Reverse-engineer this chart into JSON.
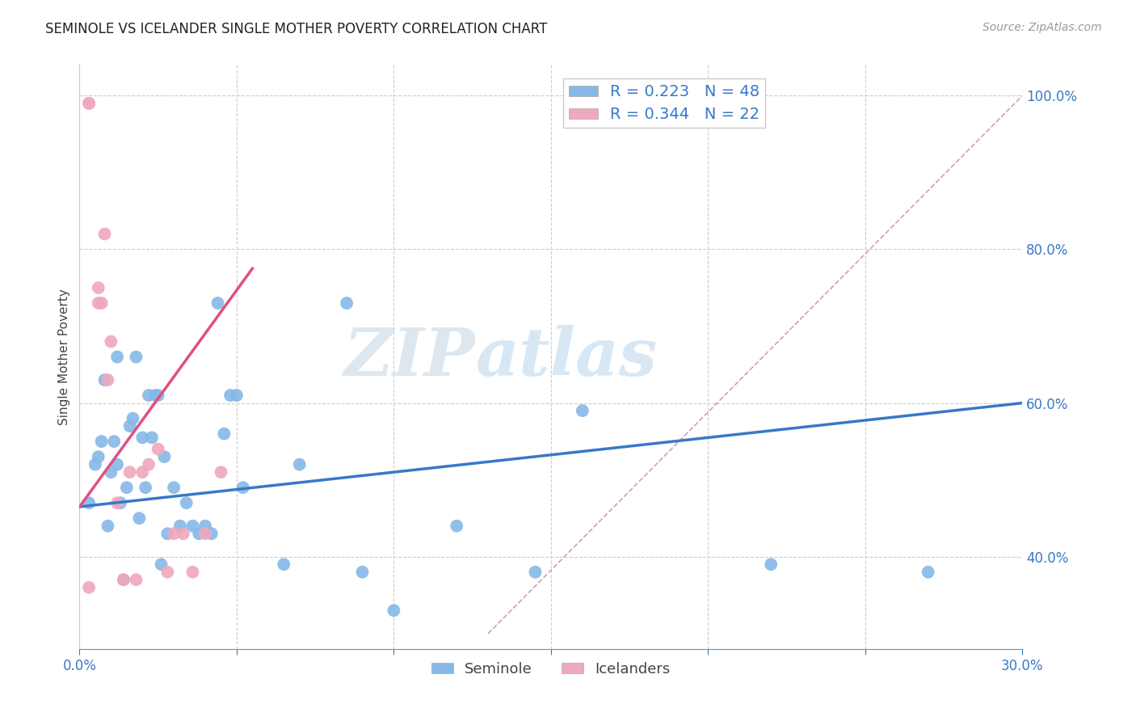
{
  "title": "SEMINOLE VS ICELANDER SINGLE MOTHER POVERTY CORRELATION CHART",
  "source": "Source: ZipAtlas.com",
  "ylabel": "Single Mother Poverty",
  "watermark": "ZIPatlas",
  "xlim": [
    0.0,
    0.3
  ],
  "ylim": [
    0.28,
    1.04
  ],
  "yticks": [
    0.4,
    0.6,
    0.8,
    1.0
  ],
  "xticks": [
    0.0,
    0.05,
    0.1,
    0.15,
    0.2,
    0.25,
    0.3
  ],
  "seminole_color": "#85b8e8",
  "icelander_color": "#f0a8bc",
  "seminole_R": 0.223,
  "seminole_N": 48,
  "icelander_R": 0.344,
  "icelander_N": 22,
  "seminole_line_color": "#3878c8",
  "icelander_line_color": "#e05080",
  "ref_line_color": "#d0a0b0",
  "seminole_line_x0": 0.0,
  "seminole_line_y0": 0.465,
  "seminole_line_x1": 0.3,
  "seminole_line_y1": 0.6,
  "icelander_line_x0": 0.0,
  "icelander_line_y0": 0.465,
  "icelander_line_x1": 0.055,
  "icelander_line_y1": 0.775,
  "ref_line_x0": 0.13,
  "ref_line_y0": 0.3,
  "ref_line_x1": 0.3,
  "ref_line_y1": 1.0,
  "seminole_x": [
    0.003,
    0.005,
    0.006,
    0.007,
    0.008,
    0.009,
    0.01,
    0.011,
    0.012,
    0.012,
    0.013,
    0.014,
    0.015,
    0.016,
    0.017,
    0.018,
    0.019,
    0.02,
    0.021,
    0.022,
    0.023,
    0.024,
    0.025,
    0.026,
    0.027,
    0.028,
    0.03,
    0.032,
    0.034,
    0.036,
    0.038,
    0.04,
    0.042,
    0.044,
    0.046,
    0.048,
    0.05,
    0.052,
    0.065,
    0.07,
    0.085,
    0.09,
    0.1,
    0.12,
    0.145,
    0.16,
    0.22,
    0.27
  ],
  "seminole_y": [
    0.47,
    0.52,
    0.53,
    0.55,
    0.63,
    0.44,
    0.51,
    0.55,
    0.66,
    0.52,
    0.47,
    0.37,
    0.49,
    0.57,
    0.58,
    0.66,
    0.45,
    0.555,
    0.49,
    0.61,
    0.555,
    0.61,
    0.61,
    0.39,
    0.53,
    0.43,
    0.49,
    0.44,
    0.47,
    0.44,
    0.43,
    0.44,
    0.43,
    0.73,
    0.56,
    0.61,
    0.61,
    0.49,
    0.39,
    0.52,
    0.73,
    0.38,
    0.33,
    0.44,
    0.38,
    0.59,
    0.39,
    0.38
  ],
  "icelander_x": [
    0.003,
    0.003,
    0.006,
    0.007,
    0.008,
    0.009,
    0.01,
    0.012,
    0.014,
    0.016,
    0.018,
    0.02,
    0.022,
    0.025,
    0.028,
    0.03,
    0.033,
    0.036,
    0.04,
    0.045,
    0.006,
    0.003
  ],
  "icelander_y": [
    0.99,
    0.99,
    0.75,
    0.73,
    0.82,
    0.63,
    0.68,
    0.47,
    0.37,
    0.51,
    0.37,
    0.51,
    0.52,
    0.54,
    0.38,
    0.43,
    0.43,
    0.38,
    0.43,
    0.51,
    0.73,
    0.36
  ]
}
